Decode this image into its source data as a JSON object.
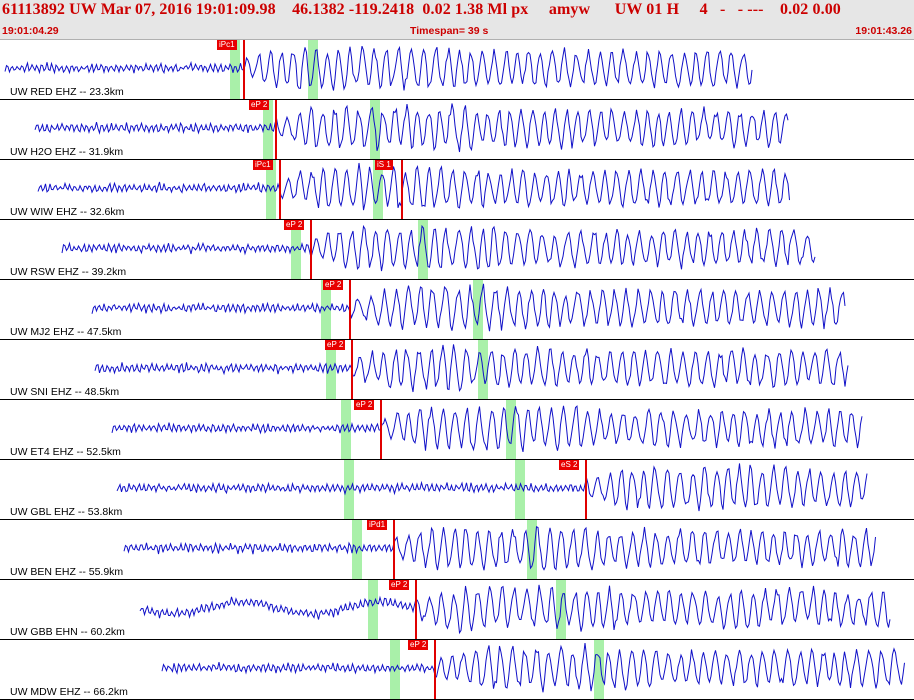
{
  "header": {
    "title": "61113892 UW Mar 07, 2016 19:01:09.98    46.1382 -119.2418  0.02 1.38 Ml px     amyw      UW 01 H     4   -   - ---    0.02 0.00",
    "start_time": "19:01:04.29",
    "timespan": "Timespan=  39 s",
    "end_time": "19:01:43.26"
  },
  "traces": [
    {
      "label": "UW RED EHZ -- 23.3km",
      "picks": [
        {
          "text": "iPc1",
          "x": 244
        }
      ],
      "windows": [
        235,
        313
      ]
    },
    {
      "label": "UW H2O EHZ -- 31.9km",
      "picks": [
        {
          "text": "eP 2",
          "x": 276
        }
      ],
      "windows": [
        268,
        375
      ]
    },
    {
      "label": "UW WIW EHZ -- 32.6km",
      "picks": [
        {
          "text": "iPc1",
          "x": 280
        },
        {
          "text": "iS 1",
          "x": 402
        }
      ],
      "windows": [
        271,
        378
      ]
    },
    {
      "label": "UW RSW EHZ -- 39.2km",
      "picks": [
        {
          "text": "eP 2",
          "x": 311
        }
      ],
      "windows": [
        296,
        423
      ]
    },
    {
      "label": "UW MJ2 EHZ -- 47.5km",
      "picks": [
        {
          "text": "eP 2",
          "x": 350
        }
      ],
      "windows": [
        326,
        478
      ]
    },
    {
      "label": "UW SNI EHZ -- 48.5km",
      "picks": [
        {
          "text": "eP 2",
          "x": 352
        }
      ],
      "windows": [
        331,
        483
      ]
    },
    {
      "label": "UW ET4 EHZ -- 52.5km",
      "picks": [
        {
          "text": "eP 2",
          "x": 381
        }
      ],
      "windows": [
        346,
        511
      ]
    },
    {
      "label": "UW GBL EHZ -- 53.8km",
      "picks": [
        {
          "text": "eS 2",
          "x": 586
        }
      ],
      "windows": [
        349,
        520
      ]
    },
    {
      "label": "UW BEN EHZ -- 55.9km",
      "picks": [
        {
          "text": "iPd1",
          "x": 394
        }
      ],
      "windows": [
        357,
        532
      ]
    },
    {
      "label": "UW GBB EHN -- 60.2km",
      "picks": [
        {
          "text": "eP 2",
          "x": 416
        }
      ],
      "windows": [
        373,
        561
      ]
    },
    {
      "label": "UW MDW EHZ -- 66.2km",
      "picks": [
        {
          "text": "eP 2",
          "x": 435
        }
      ],
      "windows": [
        395,
        599
      ]
    }
  ],
  "colors": {
    "trace": "#1010c8",
    "pick": "#e00000",
    "window": "#a9f0a9",
    "header_text": "#cc0000"
  }
}
